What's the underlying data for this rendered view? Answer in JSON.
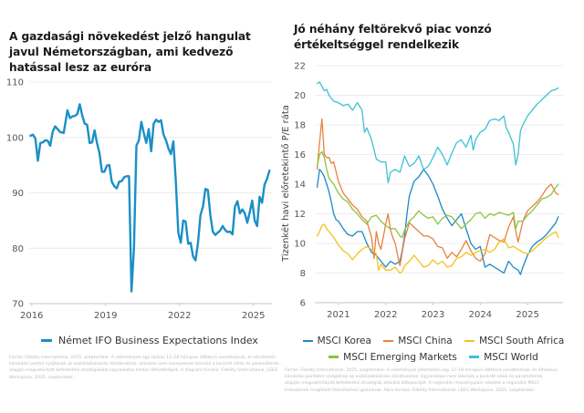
{
  "chart_data": [
    {
      "type": "line",
      "title": "A gazdasági növekedést jelző hangulat javul Németországban, ami kedvező hatással lesz az euróra",
      "xlabel": "",
      "ylabel": "",
      "ylim": [
        70,
        110
      ],
      "xlim": [
        2015.9,
        2025.75
      ],
      "yticks": [
        "70",
        "80",
        "90",
        "100",
        "110"
      ],
      "xticks": [
        {
          "label": "2016",
          "value": 2016
        },
        {
          "label": "2019",
          "value": 2019
        },
        {
          "label": "2022",
          "value": 2022
        },
        {
          "label": "2025",
          "value": 2025
        }
      ],
      "grid": true,
      "legend": "bottom",
      "series": [
        {
          "name": "Német IFO Business Expectations Index",
          "color": "#1b8fc6",
          "x": [
            2015.95,
            2016.05,
            2016.15,
            2016.25,
            2016.35,
            2016.45,
            2016.55,
            2016.65,
            2016.75,
            2016.85,
            2016.95,
            2017.05,
            2017.15,
            2017.3,
            2017.45,
            2017.55,
            2017.65,
            2017.75,
            2017.85,
            2017.95,
            2018.05,
            2018.15,
            2018.25,
            2018.35,
            2018.45,
            2018.55,
            2018.65,
            2018.75,
            2018.85,
            2018.95,
            2019.05,
            2019.15,
            2019.25,
            2019.35,
            2019.45,
            2019.55,
            2019.65,
            2019.75,
            2019.85,
            2019.95,
            2020.05,
            2020.15,
            2020.25,
            2020.35,
            2020.45,
            2020.55,
            2020.65,
            2020.75,
            2020.85,
            2020.95,
            2021.05,
            2021.15,
            2021.25,
            2021.35,
            2021.45,
            2021.55,
            2021.65,
            2021.75,
            2021.85,
            2021.95,
            2022.05,
            2022.15,
            2022.25,
            2022.35,
            2022.45,
            2022.55,
            2022.65,
            2022.75,
            2022.85,
            2022.95,
            2023.05,
            2023.15,
            2023.25,
            2023.35,
            2023.45,
            2023.55,
            2023.65,
            2023.75,
            2023.85,
            2023.95,
            2024.05,
            2024.15,
            2024.25,
            2024.35,
            2024.45,
            2024.55,
            2024.65,
            2024.75,
            2024.85,
            2024.95,
            2025.05,
            2025.15,
            2025.25,
            2025.35,
            2025.45,
            2025.55,
            2025.65
          ],
          "values": [
            100.3,
            100.5,
            99.8,
            95.8,
            99,
            99.1,
            99.5,
            99.4,
            98.5,
            101,
            102,
            101.5,
            101,
            100.8,
            104.9,
            103.5,
            103.8,
            103.9,
            104.2,
            106,
            104,
            102.5,
            102.3,
            99,
            99.1,
            101.3,
            99,
            97.2,
            93.8,
            93.8,
            94.9,
            95,
            92,
            91.2,
            90.8,
            92,
            92.1,
            92.8,
            93,
            93,
            72.2,
            80,
            98.5,
            99.5,
            102.8,
            100.8,
            99,
            101.5,
            97.5,
            102.5,
            103.2,
            102.8,
            103.1,
            100.5,
            99.5,
            98,
            97,
            99.3,
            92,
            82.8,
            81,
            85,
            84.8,
            80.8,
            81,
            78.5,
            77.8,
            81,
            86,
            87.5,
            90.7,
            90.5,
            86,
            83,
            82.4,
            82.8,
            83.2,
            84,
            83.3,
            82.9,
            83,
            82.5,
            87.5,
            88.5,
            86.3,
            87,
            86.3,
            84.6,
            86.5,
            88.6,
            85,
            84,
            89.3,
            88.2,
            91.5,
            92.5,
            94
          ]
        }
      ]
    },
    {
      "type": "line",
      "title": "Jó néhány feltörekvő piac vonzó értékeltséggel rendelkezik",
      "xlabel": "",
      "ylabel": "Tizenkét havi előretekintő P/E ráta",
      "ylim": [
        6,
        22
      ],
      "xlim": [
        2020.5,
        2025.75
      ],
      "yticks": [
        "6",
        "8",
        "10",
        "12",
        "14",
        "16",
        "18",
        "20",
        "22"
      ],
      "xticks": [
        {
          "label": "2021",
          "value": 2021
        },
        {
          "label": "2022",
          "value": 2022
        },
        {
          "label": "2023",
          "value": 2023
        },
        {
          "label": "2024",
          "value": 2024
        },
        {
          "label": "2025",
          "value": 2025
        }
      ],
      "grid": true,
      "legend": "bottom",
      "series": [
        {
          "name": "MSCI Korea",
          "color": "#1a8ac5",
          "x": [
            2020.55,
            2020.6,
            2020.65,
            2020.7,
            2020.75,
            2020.8,
            2020.85,
            2020.9,
            2020.95,
            2021.0,
            2021.1,
            2021.2,
            2021.3,
            2021.4,
            2021.5,
            2021.6,
            2021.7,
            2021.8,
            2021.9,
            2022.0,
            2022.1,
            2022.2,
            2022.3,
            2022.35,
            2022.4,
            2022.45,
            2022.5,
            2022.6,
            2022.7,
            2022.8,
            2022.9,
            2023.0,
            2023.1,
            2023.2,
            2023.3,
            2023.4,
            2023.5,
            2023.6,
            2023.7,
            2023.8,
            2023.9,
            2024.0,
            2024.1,
            2024.2,
            2024.3,
            2024.4,
            2024.5,
            2024.6,
            2024.7,
            2024.8,
            2024.85,
            2024.9,
            2025.0,
            2025.1,
            2025.2,
            2025.3,
            2025.4,
            2025.5,
            2025.6,
            2025.65
          ],
          "values": [
            13.8,
            15,
            14.8,
            14.5,
            14,
            13.5,
            12.8,
            12,
            11.6,
            11.5,
            11,
            10.6,
            10.5,
            10.8,
            10.8,
            10,
            9.4,
            9.2,
            8.8,
            8.4,
            8.8,
            8.6,
            8.8,
            9.5,
            10.5,
            12,
            13.2,
            14.2,
            14.5,
            15,
            14.6,
            14,
            13.2,
            12.3,
            11.7,
            11.2,
            11.6,
            12,
            11,
            10,
            9.6,
            9.8,
            8.4,
            8.6,
            8.4,
            8.2,
            8,
            8.8,
            8.4,
            8.2,
            7.9,
            8.4,
            9.2,
            9.8,
            10.1,
            10.3,
            10.6,
            11,
            11.4,
            11.8
          ]
        },
        {
          "name": "MSCI China",
          "color": "#e8813f",
          "x": [
            2020.55,
            2020.6,
            2020.65,
            2020.7,
            2020.75,
            2020.8,
            2020.85,
            2020.9,
            2021.0,
            2021.1,
            2021.2,
            2021.3,
            2021.4,
            2021.5,
            2021.6,
            2021.7,
            2021.75,
            2021.8,
            2021.85,
            2021.9,
            2022.0,
            2022.05,
            2022.1,
            2022.15,
            2022.2,
            2022.25,
            2022.3,
            2022.35,
            2022.4,
            2022.5,
            2022.6,
            2022.7,
            2022.8,
            2022.9,
            2023.0,
            2023.1,
            2023.2,
            2023.3,
            2023.4,
            2023.5,
            2023.6,
            2023.7,
            2023.8,
            2023.9,
            2024.0,
            2024.1,
            2024.2,
            2024.3,
            2024.4,
            2024.5,
            2024.6,
            2024.7,
            2024.75,
            2024.8,
            2024.9,
            2025.0,
            2025.1,
            2025.2,
            2025.3,
            2025.4,
            2025.5,
            2025.6,
            2025.65
          ],
          "values": [
            15,
            16.8,
            18.4,
            16,
            15.8,
            15.8,
            15.4,
            15.5,
            14.2,
            13.4,
            13,
            12.6,
            12.3,
            11.8,
            11.5,
            10.4,
            9.0,
            10.8,
            10.0,
            9.6,
            11.3,
            12,
            10.9,
            10.4,
            10.0,
            9.2,
            8.5,
            9.4,
            10.3,
            11.4,
            11.1,
            10.8,
            10.5,
            10.5,
            10.3,
            9.8,
            9.7,
            9.0,
            9.4,
            9.1,
            9.6,
            10.2,
            9.5,
            9.0,
            8.8,
            9.3,
            10.6,
            10.4,
            10.2,
            10.1,
            11.1,
            11.8,
            10.8,
            10.1,
            11.5,
            12.2,
            12.5,
            12.8,
            13.2,
            13.7,
            14.0,
            13.4,
            13.3
          ]
        },
        {
          "name": "MSCI South Africa",
          "color": "#f5c117",
          "x": [
            2020.55,
            2020.6,
            2020.65,
            2020.7,
            2020.75,
            2020.8,
            2020.9,
            2021.0,
            2021.1,
            2021.2,
            2021.3,
            2021.4,
            2021.5,
            2021.6,
            2021.7,
            2021.8,
            2021.85,
            2021.9,
            2022.0,
            2022.1,
            2022.2,
            2022.3,
            2022.35,
            2022.4,
            2022.5,
            2022.6,
            2022.7,
            2022.8,
            2022.9,
            2023.0,
            2023.1,
            2023.2,
            2023.3,
            2023.4,
            2023.5,
            2023.6,
            2023.7,
            2023.8,
            2023.9,
            2024.0,
            2024.1,
            2024.2,
            2024.3,
            2024.4,
            2024.5,
            2024.6,
            2024.7,
            2024.8,
            2024.9,
            2025.0,
            2025.1,
            2025.2,
            2025.3,
            2025.4,
            2025.5,
            2025.6,
            2025.65
          ],
          "values": [
            10.5,
            10.8,
            11.2,
            11.3,
            11,
            10.8,
            10.4,
            9.9,
            9.5,
            9.3,
            8.9,
            9.3,
            9.6,
            9.8,
            9.6,
            9.3,
            8.2,
            8.6,
            8.2,
            8.2,
            8.4,
            8.0,
            8.1,
            8.5,
            8.8,
            9.2,
            8.8,
            8.4,
            8.5,
            8.9,
            8.6,
            8.8,
            8.4,
            8.5,
            9,
            9.1,
            9.4,
            9.2,
            9.4,
            9.5,
            9.6,
            9.4,
            9.6,
            10.1,
            10.3,
            9.7,
            9.8,
            9.6,
            9.4,
            9.3,
            9.5,
            9.8,
            10.1,
            10.4,
            10.6,
            10.8,
            10.4
          ]
        },
        {
          "name": "MSCI Emerging Markets",
          "color": "#8cc43f",
          "x": [
            2020.55,
            2020.6,
            2020.65,
            2020.7,
            2020.75,
            2020.8,
            2020.9,
            2021.0,
            2021.1,
            2021.2,
            2021.3,
            2021.4,
            2021.5,
            2021.6,
            2021.7,
            2021.8,
            2021.9,
            2022.0,
            2022.1,
            2022.2,
            2022.3,
            2022.35,
            2022.4,
            2022.5,
            2022.6,
            2022.7,
            2022.8,
            2022.9,
            2023.0,
            2023.1,
            2023.2,
            2023.3,
            2023.4,
            2023.5,
            2023.6,
            2023.7,
            2023.8,
            2023.9,
            2024.0,
            2024.1,
            2024.2,
            2024.3,
            2024.4,
            2024.5,
            2024.6,
            2024.7,
            2024.75,
            2024.8,
            2024.9,
            2025.0,
            2025.1,
            2025.2,
            2025.3,
            2025.4,
            2025.5,
            2025.6,
            2025.65
          ],
          "values": [
            15.2,
            16,
            16.2,
            15.8,
            15,
            14.4,
            14,
            13.4,
            13,
            12.8,
            12.3,
            12,
            11.6,
            11.3,
            11.8,
            11.9,
            11.5,
            11.2,
            11,
            11,
            10.5,
            10.4,
            10.9,
            11.5,
            11.8,
            12.2,
            11.9,
            11.7,
            11.8,
            11.3,
            11.7,
            11.9,
            11.8,
            11.4,
            11,
            11.3,
            11.6,
            12,
            12.1,
            11.7,
            12,
            11.9,
            12.1,
            12,
            11.9,
            12.1,
            11,
            11.5,
            11.5,
            11.9,
            12.2,
            12.6,
            13,
            13.1,
            13.3,
            13.8,
            14
          ]
        },
        {
          "name": "MSCI World",
          "color": "#3ec1d3",
          "x": [
            2020.55,
            2020.6,
            2020.65,
            2020.7,
            2020.75,
            2020.8,
            2020.9,
            2021.0,
            2021.1,
            2021.2,
            2021.3,
            2021.4,
            2021.5,
            2021.55,
            2021.6,
            2021.7,
            2021.8,
            2021.9,
            2022.0,
            2022.05,
            2022.1,
            2022.2,
            2022.3,
            2022.4,
            2022.5,
            2022.6,
            2022.7,
            2022.8,
            2022.9,
            2023.0,
            2023.1,
            2023.2,
            2023.3,
            2023.4,
            2023.5,
            2023.6,
            2023.7,
            2023.8,
            2023.85,
            2023.9,
            2024.0,
            2024.1,
            2024.2,
            2024.3,
            2024.4,
            2024.5,
            2024.55,
            2024.6,
            2024.7,
            2024.75,
            2024.8,
            2024.85,
            2024.9,
            2025.0,
            2025.1,
            2025.2,
            2025.3,
            2025.4,
            2025.5,
            2025.6,
            2025.65
          ],
          "values": [
            20.8,
            20.9,
            20.6,
            20.3,
            20.4,
            20.0,
            19.6,
            19.5,
            19.3,
            19.4,
            19.0,
            19.5,
            19.0,
            17.5,
            17.8,
            17.0,
            15.7,
            15.5,
            15.5,
            14.1,
            14.8,
            15.0,
            14.8,
            15.9,
            15.2,
            15.4,
            15.9,
            15.0,
            15.2,
            15.8,
            16.5,
            16.0,
            15.3,
            16.1,
            16.8,
            17.0,
            16.5,
            17.3,
            16.3,
            17.0,
            17.5,
            17.7,
            18.3,
            18.4,
            18.3,
            18.6,
            17.8,
            17.5,
            16.7,
            15.3,
            16.0,
            17.6,
            18.0,
            18.6,
            19.0,
            19.4,
            19.7,
            20.0,
            20.3,
            20.4,
            20.5
          ]
        }
      ]
    }
  ],
  "left": {
    "title": "A gazdasági növekedést jelző hangulat javul Németországban, ami kedvező hatással lesz az euróra",
    "legend_label": "Német IFO Business Expectations Index",
    "footnote": "Forrás: Fidelity International, 2025. szeptember. A vélemények egy tipikus 12–18 hónapos időtávra vonatkoznak, és körülbelüli kiindulási pontot nyújtanak az eszközallokációs döntésekhez, azonban nem szerepelnek bennük a konkrét célok és paraméterek alapján megvalósított befektetési stratégiákkal kapcsolatos elvitus ötlhetőségek. A diagram forrása: Fidelity International, LSEG Workspace, 2025. szeptember."
  },
  "right": {
    "title": "Jó néhány feltörekvő piac vonzó értékeltséggel rendelkezik",
    "ylabel": "Tizenkét havi előretekintő P/E ráta",
    "legend": [
      {
        "label": "MSCI Korea",
        "color": "#1a8ac5"
      },
      {
        "label": "MSCI China",
        "color": "#e8813f"
      },
      {
        "label": "MSCI South Africa",
        "color": "#f5c117"
      },
      {
        "label": "MSCI Emerging Markets",
        "color": "#8cc43f"
      },
      {
        "label": "MSCI World",
        "color": "#3ec1d3"
      }
    ],
    "footnote": "Forrás: Fidelity International, 2025. szeptember. A vélemények jellemzően egy 12–18 hónapos időtávra vonatkoznak, és általános kiindulási pontként szolgálnak az eszközallokációs döntésekhez. Ugyanakkor nem tükrözik a konkrét célok és paraméterek alapján megvalósítandó befektetési stratégiák aktuális álláspontját. A regionális részvénypiaci nézetek a regionális MSCI-indexeknek megfelelő felosztáshoz igazodnak. Ábra forrása: Fidelity International, LSEG Workspace, 2025. szeptember."
  }
}
